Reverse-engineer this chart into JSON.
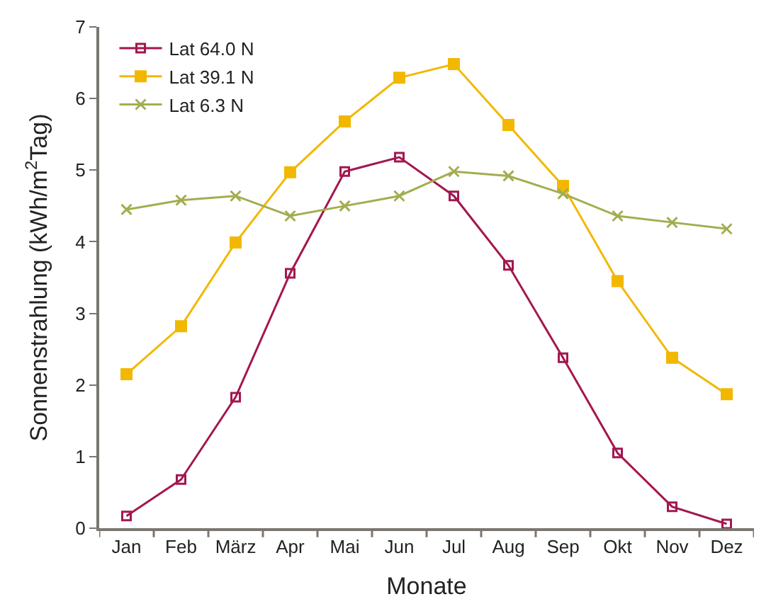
{
  "chart_data": {
    "type": "line",
    "xlabel": "Monate",
    "ylabel": "Sonnenstrahlung (kWh/m$^{2}$Tag)",
    "categories": [
      "Jan",
      "Feb",
      "März",
      "Apr",
      "Mai",
      "Jun",
      "Jul",
      "Aug",
      "Sep",
      "Okt",
      "Nov",
      "Dez"
    ],
    "series": [
      {
        "name": "Lat 64.0 N",
        "color": "#a3174f",
        "marker": "square",
        "values": [
          0.17,
          0.68,
          1.83,
          3.56,
          4.98,
          5.18,
          4.64,
          3.67,
          2.38,
          1.05,
          0.3,
          0.06
        ]
      },
      {
        "name": "Lat 39.1 N",
        "color": "#f2b800",
        "marker": "square",
        "values": [
          2.15,
          2.82,
          3.99,
          4.97,
          5.68,
          6.29,
          6.48,
          5.63,
          4.78,
          3.45,
          2.38,
          1.87
        ]
      },
      {
        "name": "Lat 6.3 N",
        "color": "#a4ad4f",
        "marker": "cross",
        "values": [
          4.45,
          4.58,
          4.64,
          4.36,
          4.5,
          4.64,
          4.98,
          4.92,
          4.67,
          4.36,
          4.27,
          4.18
        ]
      }
    ],
    "ylim": [
      0,
      7
    ],
    "yticks": [
      0,
      1,
      2,
      3,
      4,
      5,
      6,
      7
    ],
    "legend": "top left",
    "line_style": "solid"
  }
}
